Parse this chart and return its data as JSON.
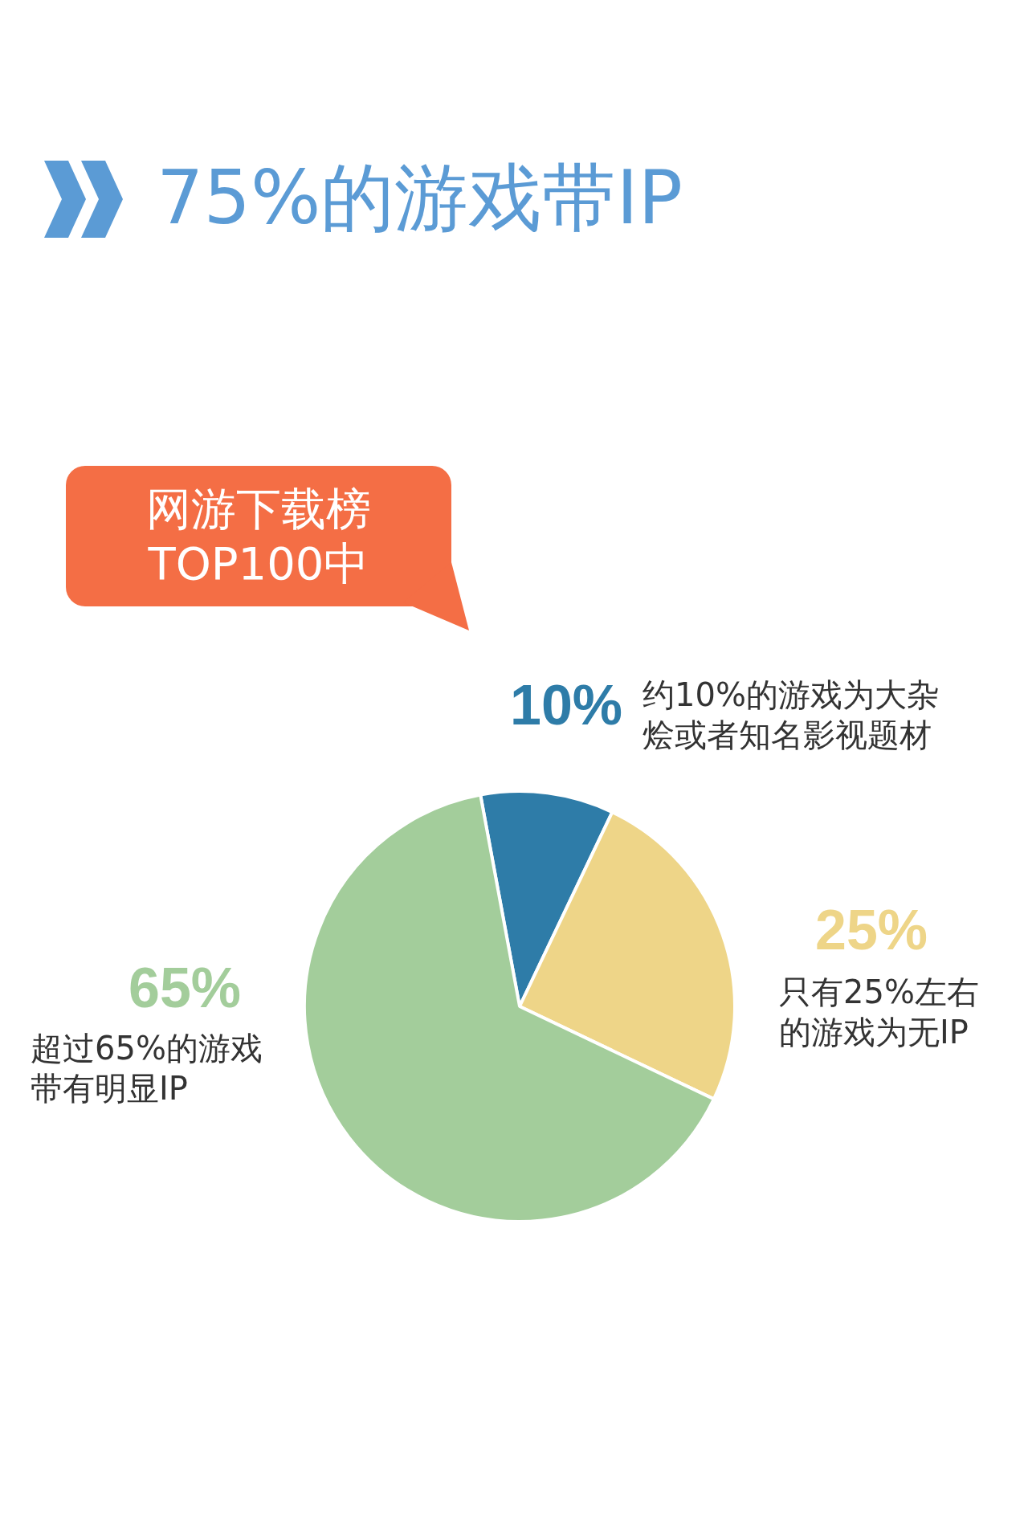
{
  "chart_data": {
    "type": "pie",
    "title": "75%的游戏带IP",
    "categories": [
      "约10%的游戏为大杂烩或者知名影视题材",
      "只有25%左右的游戏为无IP",
      "超过65%的游戏带有明显IP"
    ],
    "values": [
      10,
      25,
      65
    ],
    "colors": [
      "#2e7ca8",
      "#eed588",
      "#a3cd9b"
    ],
    "value_labels": [
      "10%",
      "25%",
      "65%"
    ],
    "annotations": [
      "网游下载榜TOP100中"
    ]
  }
}
